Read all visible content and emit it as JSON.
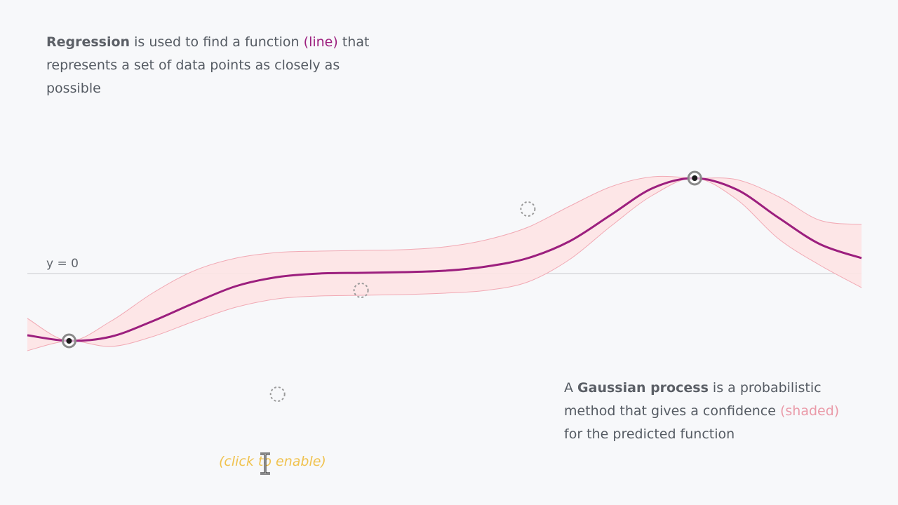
{
  "intro": {
    "bold": "Regression",
    "before_line": " is used to find a function ",
    "line_word": "(line)",
    "rest": " that represents a set of data points as closely as possible"
  },
  "gp": {
    "prefix": "A ",
    "bold": "Gaussian process",
    "middle": " is a probabilistic method that gives a confidence ",
    "shaded_word": "(shaded)",
    "suffix": " for the predicted function"
  },
  "click_hint": "(click to enable)",
  "colors": {
    "line": "#9c1f7e",
    "band_fill": "#fde3e4",
    "band_edge": "#f1a9b4",
    "axis": "#d8d9dc",
    "hint": "#f0c24e"
  },
  "chart_data": {
    "type": "line",
    "zero_label": "y = 0",
    "xlim": [
      0,
      1
    ],
    "ylim": [
      -1,
      1
    ],
    "mean": [
      [
        0.0,
        -0.44
      ],
      [
        0.05,
        -0.48
      ],
      [
        0.1,
        -0.45
      ],
      [
        0.15,
        -0.34
      ],
      [
        0.2,
        -0.21
      ],
      [
        0.25,
        -0.09
      ],
      [
        0.3,
        -0.025
      ],
      [
        0.35,
        0.0
      ],
      [
        0.4,
        0.005
      ],
      [
        0.45,
        0.01
      ],
      [
        0.5,
        0.02
      ],
      [
        0.55,
        0.05
      ],
      [
        0.6,
        0.11
      ],
      [
        0.65,
        0.23
      ],
      [
        0.7,
        0.42
      ],
      [
        0.75,
        0.61
      ],
      [
        0.8,
        0.68
      ],
      [
        0.85,
        0.6
      ],
      [
        0.9,
        0.4
      ],
      [
        0.95,
        0.21
      ],
      [
        1.0,
        0.11
      ]
    ],
    "band_upper": [
      [
        0.0,
        -0.32
      ],
      [
        0.05,
        -0.48
      ],
      [
        0.1,
        -0.34
      ],
      [
        0.15,
        -0.14
      ],
      [
        0.2,
        0.02
      ],
      [
        0.25,
        0.11
      ],
      [
        0.3,
        0.15
      ],
      [
        0.35,
        0.16
      ],
      [
        0.4,
        0.165
      ],
      [
        0.45,
        0.17
      ],
      [
        0.5,
        0.19
      ],
      [
        0.55,
        0.24
      ],
      [
        0.6,
        0.33
      ],
      [
        0.65,
        0.48
      ],
      [
        0.7,
        0.62
      ],
      [
        0.75,
        0.69
      ],
      [
        0.8,
        0.68
      ],
      [
        0.85,
        0.67
      ],
      [
        0.9,
        0.55
      ],
      [
        0.95,
        0.38
      ],
      [
        1.0,
        0.35
      ]
    ],
    "band_lower": [
      [
        0.0,
        -0.55
      ],
      [
        0.05,
        -0.48
      ],
      [
        0.1,
        -0.52
      ],
      [
        0.15,
        -0.45
      ],
      [
        0.2,
        -0.34
      ],
      [
        0.25,
        -0.24
      ],
      [
        0.3,
        -0.18
      ],
      [
        0.35,
        -0.16
      ],
      [
        0.4,
        -0.155
      ],
      [
        0.45,
        -0.15
      ],
      [
        0.5,
        -0.14
      ],
      [
        0.55,
        -0.12
      ],
      [
        0.6,
        -0.06
      ],
      [
        0.65,
        0.1
      ],
      [
        0.7,
        0.34
      ],
      [
        0.75,
        0.56
      ],
      [
        0.8,
        0.68
      ],
      [
        0.85,
        0.53
      ],
      [
        0.9,
        0.25
      ],
      [
        0.95,
        0.06
      ],
      [
        1.0,
        -0.1
      ]
    ],
    "observed_points": [
      {
        "x": 0.05,
        "y": -0.48
      },
      {
        "x": 0.8,
        "y": 0.68
      }
    ],
    "candidate_points": [
      {
        "x": 0.4,
        "y": -0.12
      },
      {
        "x": 0.6,
        "y": 0.46
      },
      {
        "x": 0.3,
        "y": -0.86
      }
    ]
  }
}
